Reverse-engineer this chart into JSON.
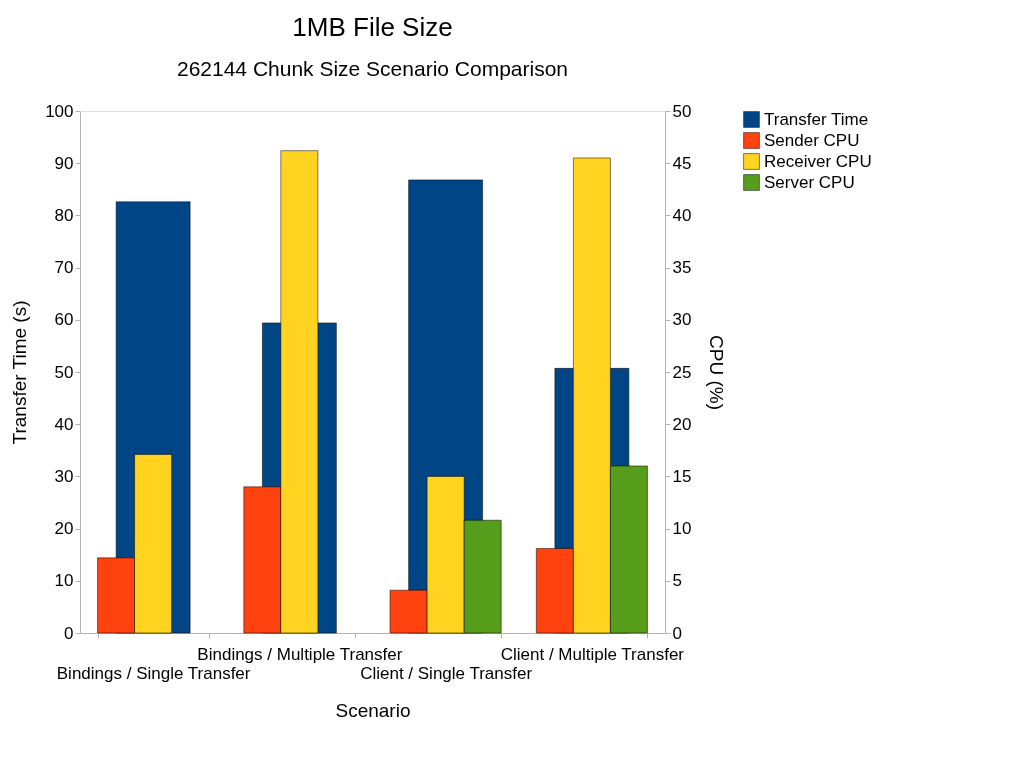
{
  "chart_data": {
    "type": "bar",
    "title": "1MB File Size",
    "subtitle": "262144 Chunk Size Scenario Comparison",
    "xlabel": "Scenario",
    "ylabel": "Transfer Time (s)",
    "y2label": "CPU (%)",
    "categories": [
      "Bindings / Single Transfer",
      "Bindings / Multiple Transfer",
      "Client / Single Transfer",
      "Client / Multiple Transfer"
    ],
    "series": [
      {
        "name": "Transfer Time",
        "color": "#004586",
        "values": [
          82.6,
          59.4,
          86.8,
          50.7
        ]
      },
      {
        "name": "Sender CPU",
        "color": "#ff420e",
        "axis": "y2",
        "values": [
          7.2,
          14,
          4.1,
          8.1
        ]
      },
      {
        "name": "Receiver CPU",
        "color": "#ffd320",
        "axis": "y2",
        "values": [
          17.1,
          46.2,
          15,
          45.5
        ]
      },
      {
        "name": "Server CPU",
        "color": "#579d1c",
        "axis": "y2",
        "values": [
          null,
          null,
          10.8,
          16
        ]
      }
    ],
    "ylim": [
      0,
      100
    ],
    "yticks": [
      0,
      10,
      20,
      30,
      40,
      50,
      60,
      70,
      80,
      90,
      100
    ],
    "y2lim": [
      0,
      50
    ],
    "y2ticks": [
      0,
      5,
      10,
      15,
      20,
      25,
      30,
      35,
      40,
      45,
      50
    ],
    "grid": false,
    "legend": "right"
  }
}
